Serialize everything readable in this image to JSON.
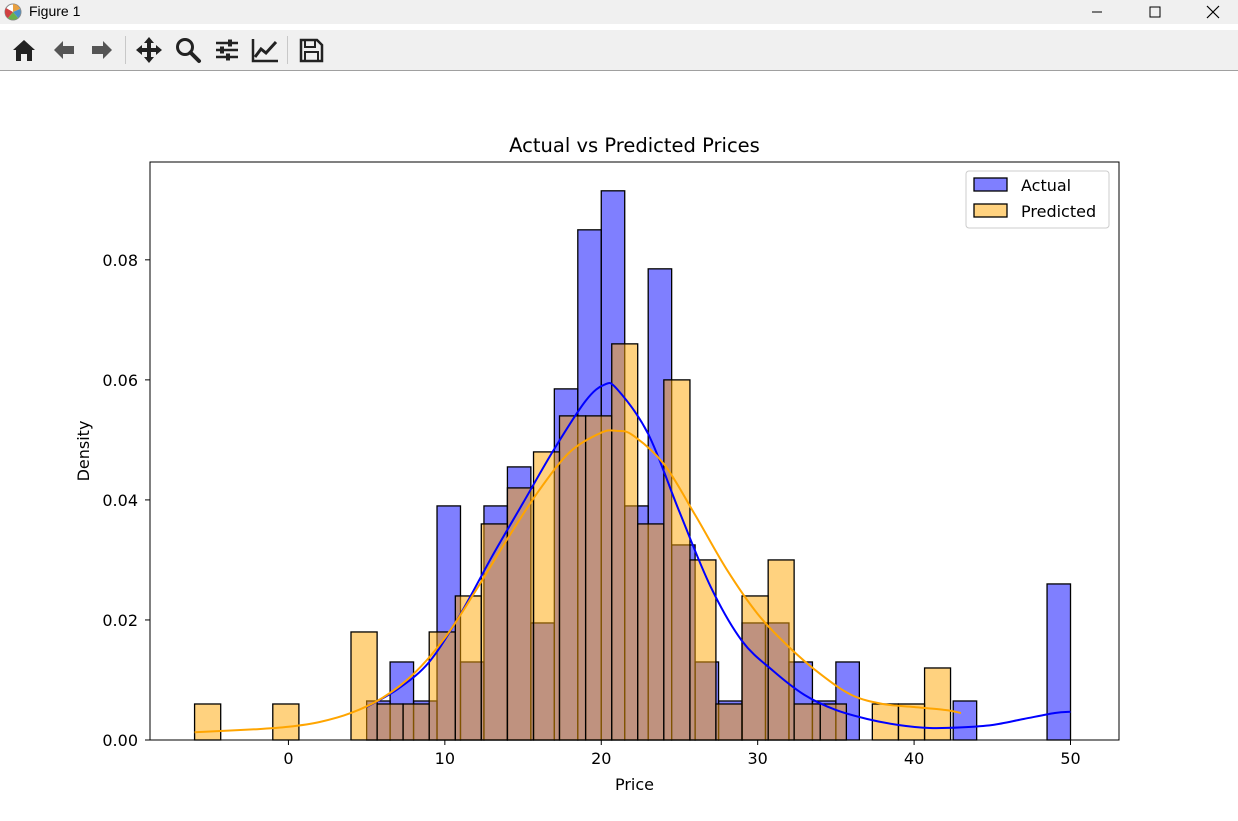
{
  "window": {
    "title": "Figure 1",
    "icons": [
      "matplotlib-logo-icon",
      "minimize-icon",
      "maximize-icon",
      "close-icon"
    ]
  },
  "toolbar": {
    "buttons": [
      "home-icon",
      "back-arrow-icon",
      "forward-arrow-icon",
      "pan-icon",
      "zoom-icon",
      "configure-subplots-icon",
      "edit-axis-icon",
      "save-icon"
    ]
  },
  "chart_data": {
    "type": "bar",
    "title": "Actual vs Predicted Prices",
    "xlabel": "Price",
    "ylabel": "Density",
    "xlim": [
      -8.85,
      53.1
    ],
    "ylim": [
      0,
      0.0963
    ],
    "x_ticks": [
      0,
      10,
      20,
      30,
      40,
      50
    ],
    "x_tick_labels": [
      "0",
      "10",
      "20",
      "30",
      "40",
      "50"
    ],
    "y_ticks": [
      0,
      0.02,
      0.04,
      0.06,
      0.08
    ],
    "y_tick_labels": [
      "0.00",
      "0.02",
      "0.04",
      "0.06",
      "0.08"
    ],
    "grid": false,
    "legend_position": "upper right",
    "series": [
      {
        "name": "Actual",
        "color": "#0000ff",
        "fill_alpha": 0.5,
        "bin_edges": [
          5.0,
          6.5,
          8.0,
          9.5,
          11.0,
          12.5,
          14.0,
          15.5,
          17.0,
          18.5,
          20.0,
          21.5,
          23.0,
          24.5,
          26.0,
          27.5,
          29.0,
          30.5,
          32.0,
          33.5,
          35.0,
          36.5,
          38.0,
          39.5,
          41.0,
          42.5,
          44.0,
          45.5,
          47.0,
          48.5,
          50.0
        ],
        "density": [
          0.0065,
          0.013,
          0.0065,
          0.039,
          0.013,
          0.039,
          0.0455,
          0.0195,
          0.0585,
          0.085,
          0.0915,
          0.039,
          0.0785,
          0.0325,
          0.013,
          0.0065,
          0.0195,
          0.0195,
          0.013,
          0.0065,
          0.013,
          0.0,
          0.0,
          0.0,
          0.0,
          0.0065,
          0.0,
          0.0,
          0.0,
          0.026
        ],
        "kde_x": [
          5,
          7,
          9,
          11,
          13,
          15,
          17,
          19,
          20.2,
          21,
          23,
          25,
          27,
          29,
          31,
          33,
          35,
          37,
          39,
          41,
          43,
          45,
          47,
          49,
          50
        ],
        "kde_y": [
          0.0055,
          0.0085,
          0.013,
          0.021,
          0.0305,
          0.0395,
          0.0485,
          0.0565,
          0.0592,
          0.0585,
          0.051,
          0.038,
          0.0255,
          0.0165,
          0.0115,
          0.0075,
          0.005,
          0.0035,
          0.0025,
          0.002,
          0.0021,
          0.0025,
          0.0035,
          0.0045,
          0.0047
        ]
      },
      {
        "name": "Predicted",
        "color": "#ffa500",
        "fill_alpha": 0.5,
        "bin_edges": [
          -6.0,
          -4.33,
          -2.67,
          -1.0,
          0.67,
          2.33,
          4.0,
          5.67,
          7.33,
          9.0,
          10.67,
          12.33,
          14.0,
          15.67,
          17.33,
          19.0,
          20.67,
          22.33,
          24.0,
          25.67,
          27.33,
          29.0,
          30.67,
          32.33,
          34.0,
          35.67,
          37.33,
          39.0,
          40.67,
          42.33,
          44.0
        ],
        "density": [
          0.006,
          0.0,
          0.0,
          0.006,
          0.0,
          0.0,
          0.018,
          0.006,
          0.006,
          0.018,
          0.024,
          0.036,
          0.042,
          0.048,
          0.054,
          0.054,
          0.066,
          0.036,
          0.06,
          0.03,
          0.006,
          0.024,
          0.03,
          0.006,
          0.006,
          0.0,
          0.006,
          0.006,
          0.012,
          0.0
        ],
        "kde_x": [
          -6,
          -2,
          0,
          2,
          4,
          6,
          8,
          10,
          12,
          14,
          16,
          18,
          20,
          21,
          22,
          24,
          26,
          28,
          30,
          32,
          34,
          36,
          38,
          40,
          42,
          43
        ],
        "kde_y": [
          0.0013,
          0.0018,
          0.0022,
          0.003,
          0.0045,
          0.007,
          0.011,
          0.017,
          0.025,
          0.0335,
          0.0415,
          0.048,
          0.0512,
          0.0515,
          0.0508,
          0.046,
          0.0375,
          0.0285,
          0.021,
          0.0155,
          0.011,
          0.0075,
          0.006,
          0.0055,
          0.005,
          0.0045
        ]
      }
    ]
  }
}
